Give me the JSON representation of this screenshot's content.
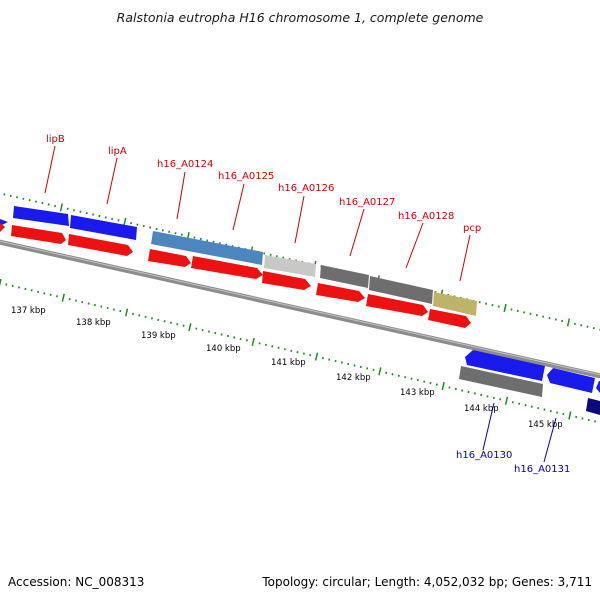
{
  "title": "Ralstonia eutropha H16 chromosome 1, complete genome",
  "footer": {
    "accession": "Accession: NC_008313",
    "stats": "Topology: circular; Length: 4,052,032 bp; Genes: 3,711"
  },
  "colors": {
    "forward_gene": "#1a1aee",
    "forward_gene_dark": "#0f0f8c",
    "forward_cds": "#ee1111",
    "reverse_gene": "#1a1aee",
    "reverse_gene_navy": "#0a0a7a",
    "misc_steelblue": "#4d86be",
    "misc_lightgray": "#c8c8c8",
    "misc_darkgray": "#6e6e6e",
    "misc_khaki": "#bdb36b",
    "backbone": "#8c8c8c",
    "ticks": "#1f8a1f",
    "label_red": "#cc0000",
    "label_blue": "#0000bb"
  },
  "kbp_labels": [
    "137 kbp",
    "138 kbp",
    "139 kbp",
    "140 kbp",
    "141 kbp",
    "142 kbp",
    "143 kbp",
    "144 kbp",
    "145 kbp"
  ],
  "forward_labels": [
    "lipB",
    "lipA",
    "h16_A0124",
    "h16_A0125",
    "h16_A0126",
    "h16_A0127",
    "h16_A0128",
    "pcp"
  ],
  "reverse_labels": [
    "h16_A0130",
    "h16_A0131"
  ]
}
